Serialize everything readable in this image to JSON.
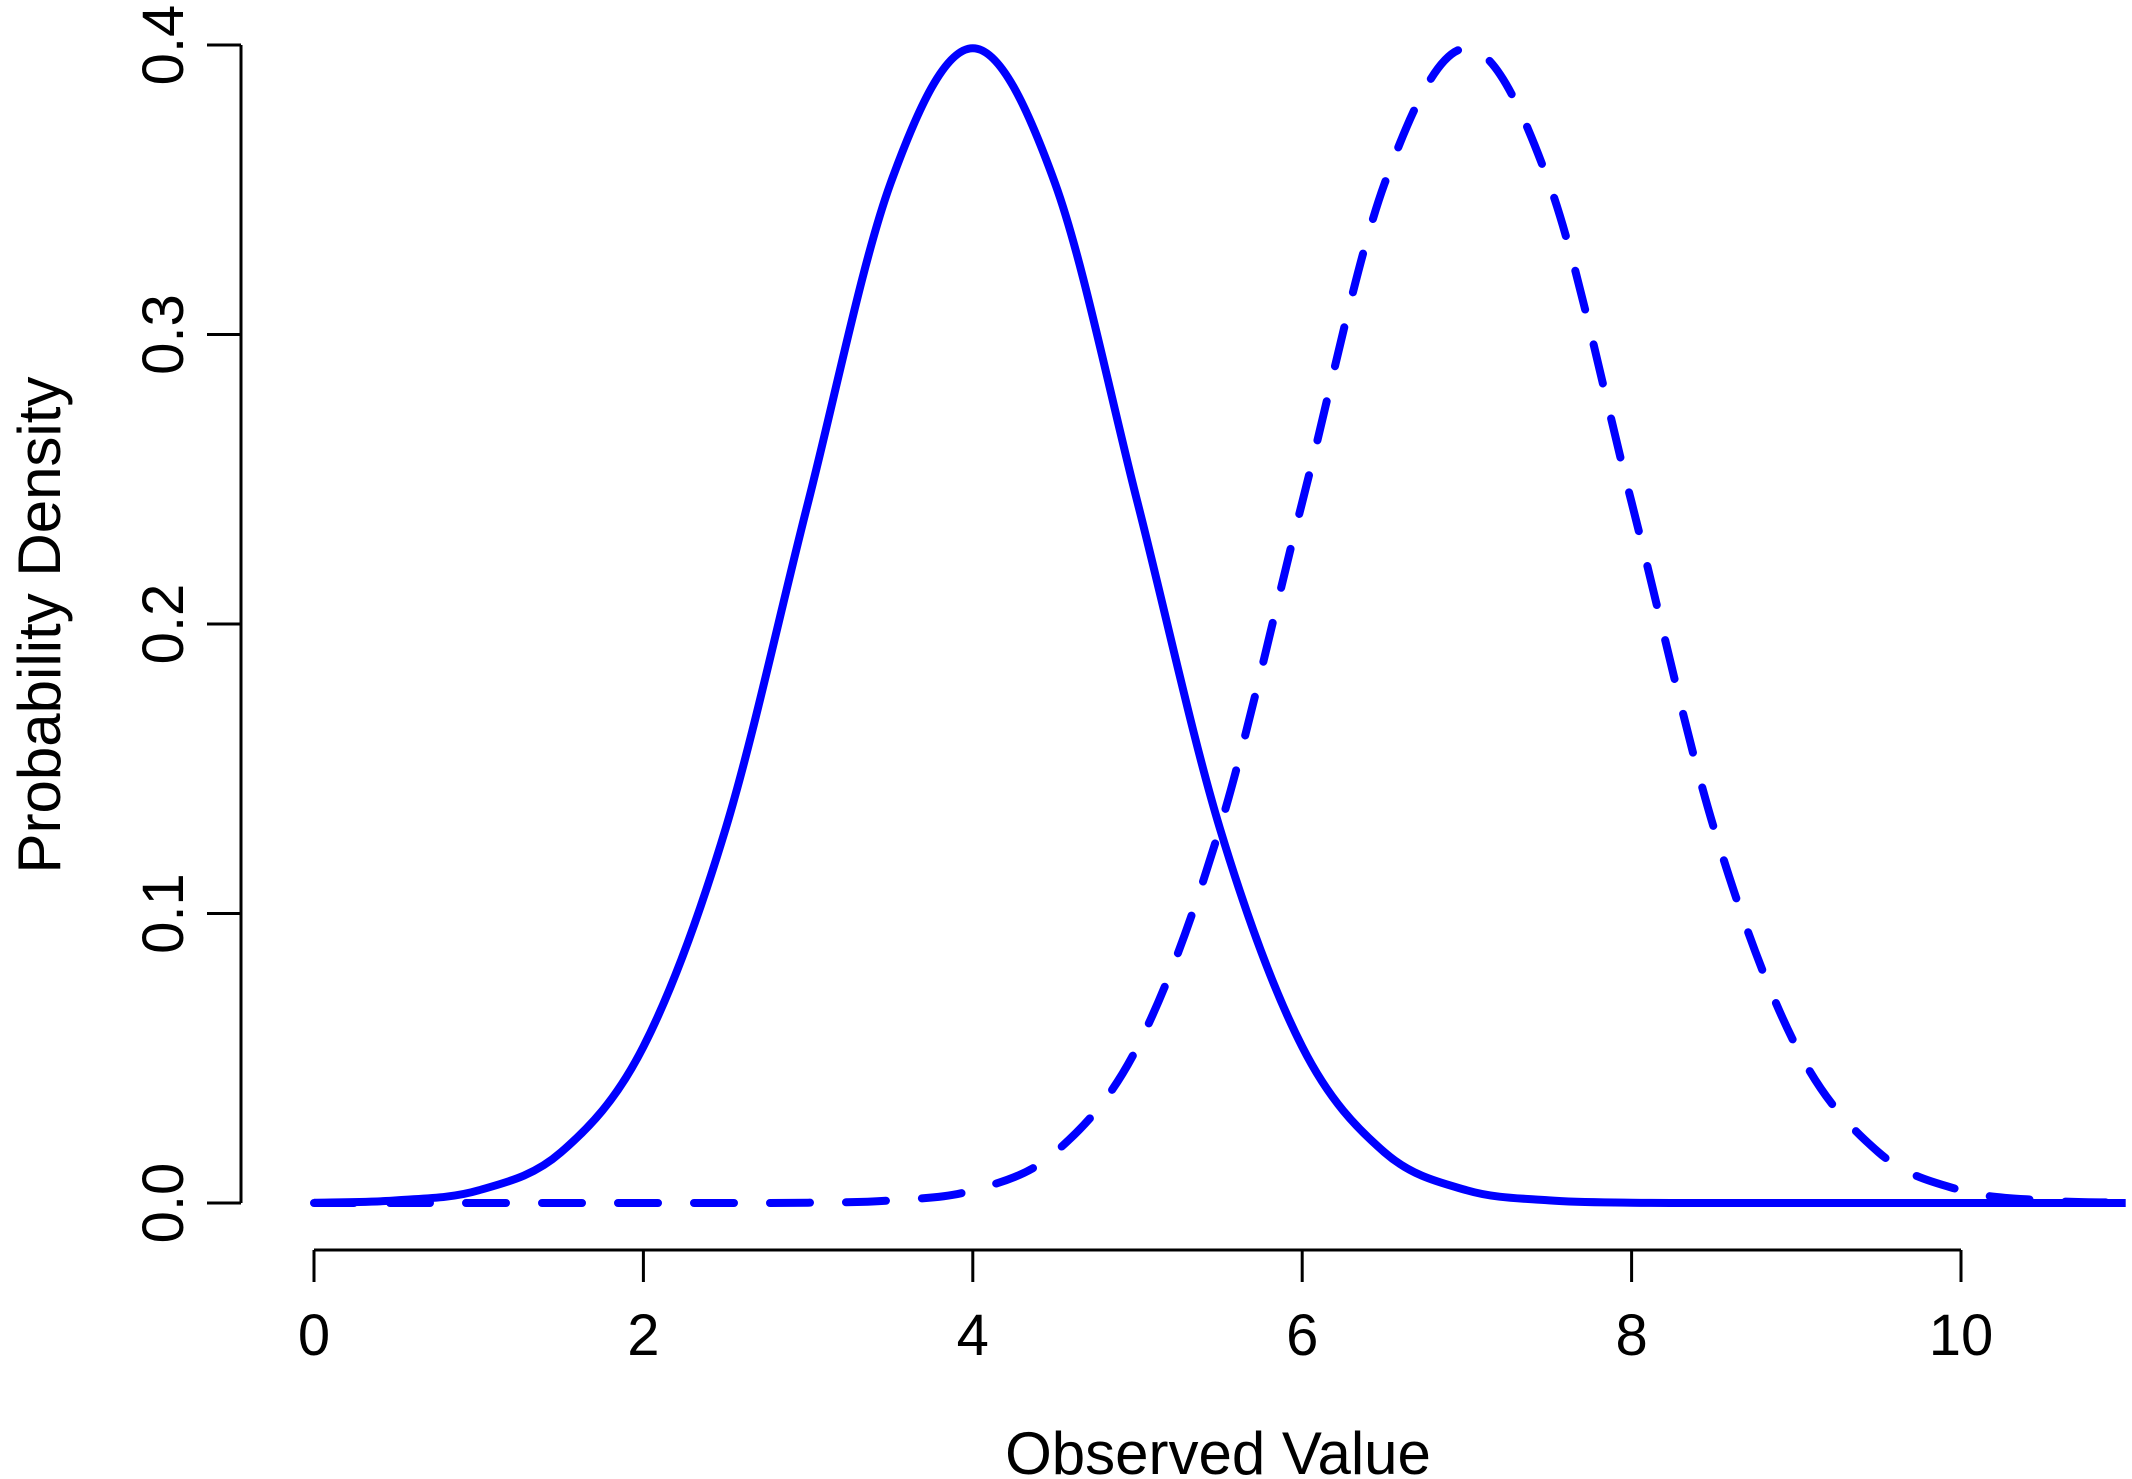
{
  "chart_data": {
    "type": "line",
    "title": "",
    "xlabel": "Observed Value",
    "ylabel": "Probability Density",
    "xlim": [
      0,
      11
    ],
    "ylim": [
      0,
      0.4
    ],
    "x_ticks": [
      0,
      2,
      4,
      6,
      8,
      10
    ],
    "x_tick_labels": [
      "0",
      "2",
      "4",
      "6",
      "8",
      "10"
    ],
    "y_ticks": [
      0.0,
      0.1,
      0.2,
      0.3,
      0.4
    ],
    "y_tick_labels": [
      "0.0",
      "0.1",
      "0.2",
      "0.3",
      "0.4"
    ],
    "grid": false,
    "legend": "none",
    "series": [
      {
        "line_style": "solid",
        "color": "#0000ff",
        "x": [
          0,
          0.5,
          1,
          1.5,
          2,
          2.5,
          3,
          3.5,
          4,
          4.5,
          5,
          5.5,
          6,
          6.5,
          7,
          7.5,
          8,
          8.5,
          9,
          9.5,
          10,
          10.5,
          11
        ],
        "y": [
          0.0001,
          0.0009,
          0.0044,
          0.0175,
          0.054,
          0.1295,
          0.242,
          0.3521,
          0.3989,
          0.3521,
          0.242,
          0.1295,
          0.054,
          0.0175,
          0.0044,
          0.0009,
          0.0001,
          0.0,
          0.0,
          0.0,
          0.0,
          0.0,
          0.0
        ]
      },
      {
        "line_style": "dashed",
        "color": "#0000ff",
        "x": [
          0,
          0.5,
          1,
          1.5,
          2,
          2.5,
          3,
          3.5,
          4,
          4.5,
          5,
          5.5,
          6,
          6.5,
          7,
          7.5,
          8,
          8.5,
          9,
          9.5,
          10,
          10.5,
          11
        ],
        "y": [
          0.0,
          0.0,
          0.0,
          0.0,
          0.0,
          0.0,
          0.0001,
          0.0009,
          0.0044,
          0.0175,
          0.054,
          0.1295,
          0.242,
          0.3521,
          0.3989,
          0.3521,
          0.242,
          0.1295,
          0.054,
          0.0175,
          0.0044,
          0.0009,
          0.0001
        ]
      }
    ]
  }
}
